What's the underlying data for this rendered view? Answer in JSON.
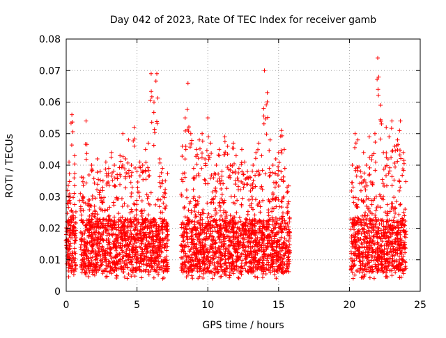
{
  "chart_data": {
    "type": "scatter",
    "title": "Day 042 of 2023, Rate Of TEC Index for receiver gamb",
    "xlabel": "GPS time / hours",
    "ylabel": "ROTI / TECUs",
    "xlim": [
      0,
      25
    ],
    "ylim": [
      0,
      0.08
    ],
    "xticks": [
      0,
      5,
      10,
      15,
      20,
      25
    ],
    "xtick_labels": [
      "0",
      "5",
      "10",
      "15",
      "20",
      "25"
    ],
    "yticks": [
      0,
      0.01,
      0.02,
      0.03,
      0.04,
      0.05,
      0.06,
      0.07,
      0.08
    ],
    "ytick_labels": [
      "0",
      "0.01",
      "0.02",
      "0.03",
      "0.04",
      "0.05",
      "0.06",
      "0.07",
      "0.08"
    ],
    "grid": true,
    "marker": "+",
    "color": "#ff0000",
    "data_segments": [
      {
        "start": 0.0,
        "end": 0.7
      },
      {
        "start": 1.0,
        "end": 7.2
      },
      {
        "start": 8.1,
        "end": 15.8
      },
      {
        "start": 20.1,
        "end": 24.0
      }
    ],
    "series": [
      {
        "name": "ROTI",
        "x": [
          0.0,
          0.1,
          0.2,
          0.3,
          0.4,
          0.5,
          0.6,
          1.0,
          1.2,
          1.4,
          1.6,
          1.8,
          2.0,
          2.2,
          2.4,
          2.6,
          2.8,
          3.0,
          3.2,
          3.4,
          3.6,
          3.8,
          4.0,
          4.2,
          4.4,
          4.6,
          4.8,
          5.0,
          5.2,
          5.4,
          5.6,
          5.8,
          6.0,
          6.2,
          6.4,
          6.6,
          6.8,
          7.0,
          8.2,
          8.4,
          8.6,
          8.8,
          9.0,
          9.2,
          9.4,
          9.6,
          9.8,
          10.0,
          10.2,
          10.4,
          10.6,
          10.8,
          11.0,
          11.2,
          11.4,
          11.6,
          11.8,
          12.0,
          12.2,
          12.4,
          12.6,
          12.8,
          13.0,
          13.2,
          13.4,
          13.6,
          13.8,
          14.0,
          14.2,
          14.4,
          14.6,
          14.8,
          15.0,
          15.2,
          15.4,
          15.6,
          20.2,
          20.4,
          20.6,
          20.8,
          21.0,
          21.2,
          21.4,
          21.6,
          21.8,
          22.0,
          22.2,
          22.4,
          22.6,
          22.8,
          23.0,
          23.2,
          23.4,
          23.6,
          23.8
        ],
        "y": [
          0.018,
          0.032,
          0.041,
          0.028,
          0.056,
          0.024,
          0.043,
          0.031,
          0.036,
          0.054,
          0.029,
          0.04,
          0.027,
          0.042,
          0.038,
          0.035,
          0.041,
          0.039,
          0.044,
          0.04,
          0.037,
          0.043,
          0.05,
          0.042,
          0.048,
          0.04,
          0.052,
          0.038,
          0.041,
          0.04,
          0.045,
          0.047,
          0.069,
          0.06,
          0.069,
          0.042,
          0.039,
          0.035,
          0.046,
          0.055,
          0.066,
          0.05,
          0.039,
          0.045,
          0.048,
          0.05,
          0.042,
          0.055,
          0.047,
          0.036,
          0.04,
          0.045,
          0.038,
          0.049,
          0.046,
          0.04,
          0.047,
          0.043,
          0.039,
          0.045,
          0.041,
          0.038,
          0.036,
          0.04,
          0.044,
          0.047,
          0.043,
          0.07,
          0.063,
          0.048,
          0.04,
          0.042,
          0.044,
          0.051,
          0.045,
          0.033,
          0.04,
          0.05,
          0.048,
          0.038,
          0.044,
          0.04,
          0.049,
          0.043,
          0.05,
          0.074,
          0.059,
          0.044,
          0.052,
          0.049,
          0.054,
          0.046,
          0.048,
          0.054,
          0.044
        ]
      }
    ],
    "note": "Dense cloud of thousands of '+' markers; x/y arrays list the upper-envelope peaks read from the plot. Bulk of points lies between 0.005 and 0.03 TECUs within each data segment."
  }
}
